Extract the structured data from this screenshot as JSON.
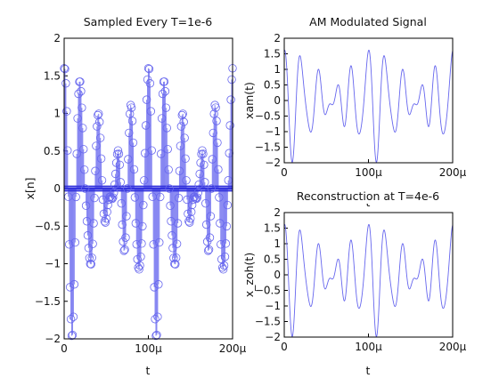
{
  "chart_data": [
    {
      "type": "stem",
      "title": "Sampled Every T=1e-6",
      "xlabel": "t",
      "ylabel": "x[n]",
      "xlim": [
        0,
        0.0002
      ],
      "ylim": [
        -2,
        2
      ],
      "xticks": [
        0,
        0.0001,
        0.0002
      ],
      "xtick_labels": [
        "0",
        "100μ",
        "200μ"
      ],
      "yticks": [
        -2,
        -1.5,
        -1,
        -0.5,
        0,
        0.5,
        1,
        1.5,
        2
      ],
      "ytick_labels": [
        "−2",
        "−1.5",
        "−1",
        "−0.5",
        "0",
        "0.5",
        "1",
        "1.5",
        "2"
      ],
      "sample_period": 1e-06,
      "signal": "(1 + 0.6·cos(2π·10000·t))·cos(2π·50000·t) + 0.6·sin(2π·20000·t)·cos(2π·60000·t)",
      "color": "#6666ee"
    },
    {
      "type": "line",
      "title": "AM Modulated Signal",
      "xlabel": "",
      "ylabel": "xam(t)",
      "xlim": [
        0,
        0.0002
      ],
      "ylim": [
        -2,
        2
      ],
      "xticks": [
        0,
        0.0001,
        0.0002
      ],
      "xtick_labels": [
        "0",
        "100μ",
        "200μ"
      ],
      "yticks": [
        -2,
        -1.5,
        -1,
        -0.5,
        0,
        0.5,
        1,
        1.5,
        2
      ],
      "ytick_labels": [
        "−2",
        "−1.5",
        "−1",
        "−0.5",
        "0",
        "0.5",
        "1",
        "1.5",
        "2"
      ],
      "color": "#6666ee"
    },
    {
      "type": "line",
      "title": "Reconstruction at T=4e-6",
      "xlabel": "t",
      "ylabel": "x_zoh(t)",
      "xlim": [
        0,
        0.0002
      ],
      "ylim": [
        -2,
        2
      ],
      "xticks": [
        0,
        0.0001,
        0.0002
      ],
      "xtick_labels": [
        "0",
        "100μ",
        "200μ"
      ],
      "yticks": [
        -2,
        -1.5,
        -1,
        -0.5,
        0,
        0.5,
        1,
        1.5,
        2
      ],
      "ytick_labels": [
        "−2",
        "−1.5",
        "−1",
        "−0.5",
        "0",
        "0.5",
        "1",
        "1.5",
        "2"
      ],
      "color": "#6666ee"
    }
  ],
  "hidden_xlabel": "t"
}
